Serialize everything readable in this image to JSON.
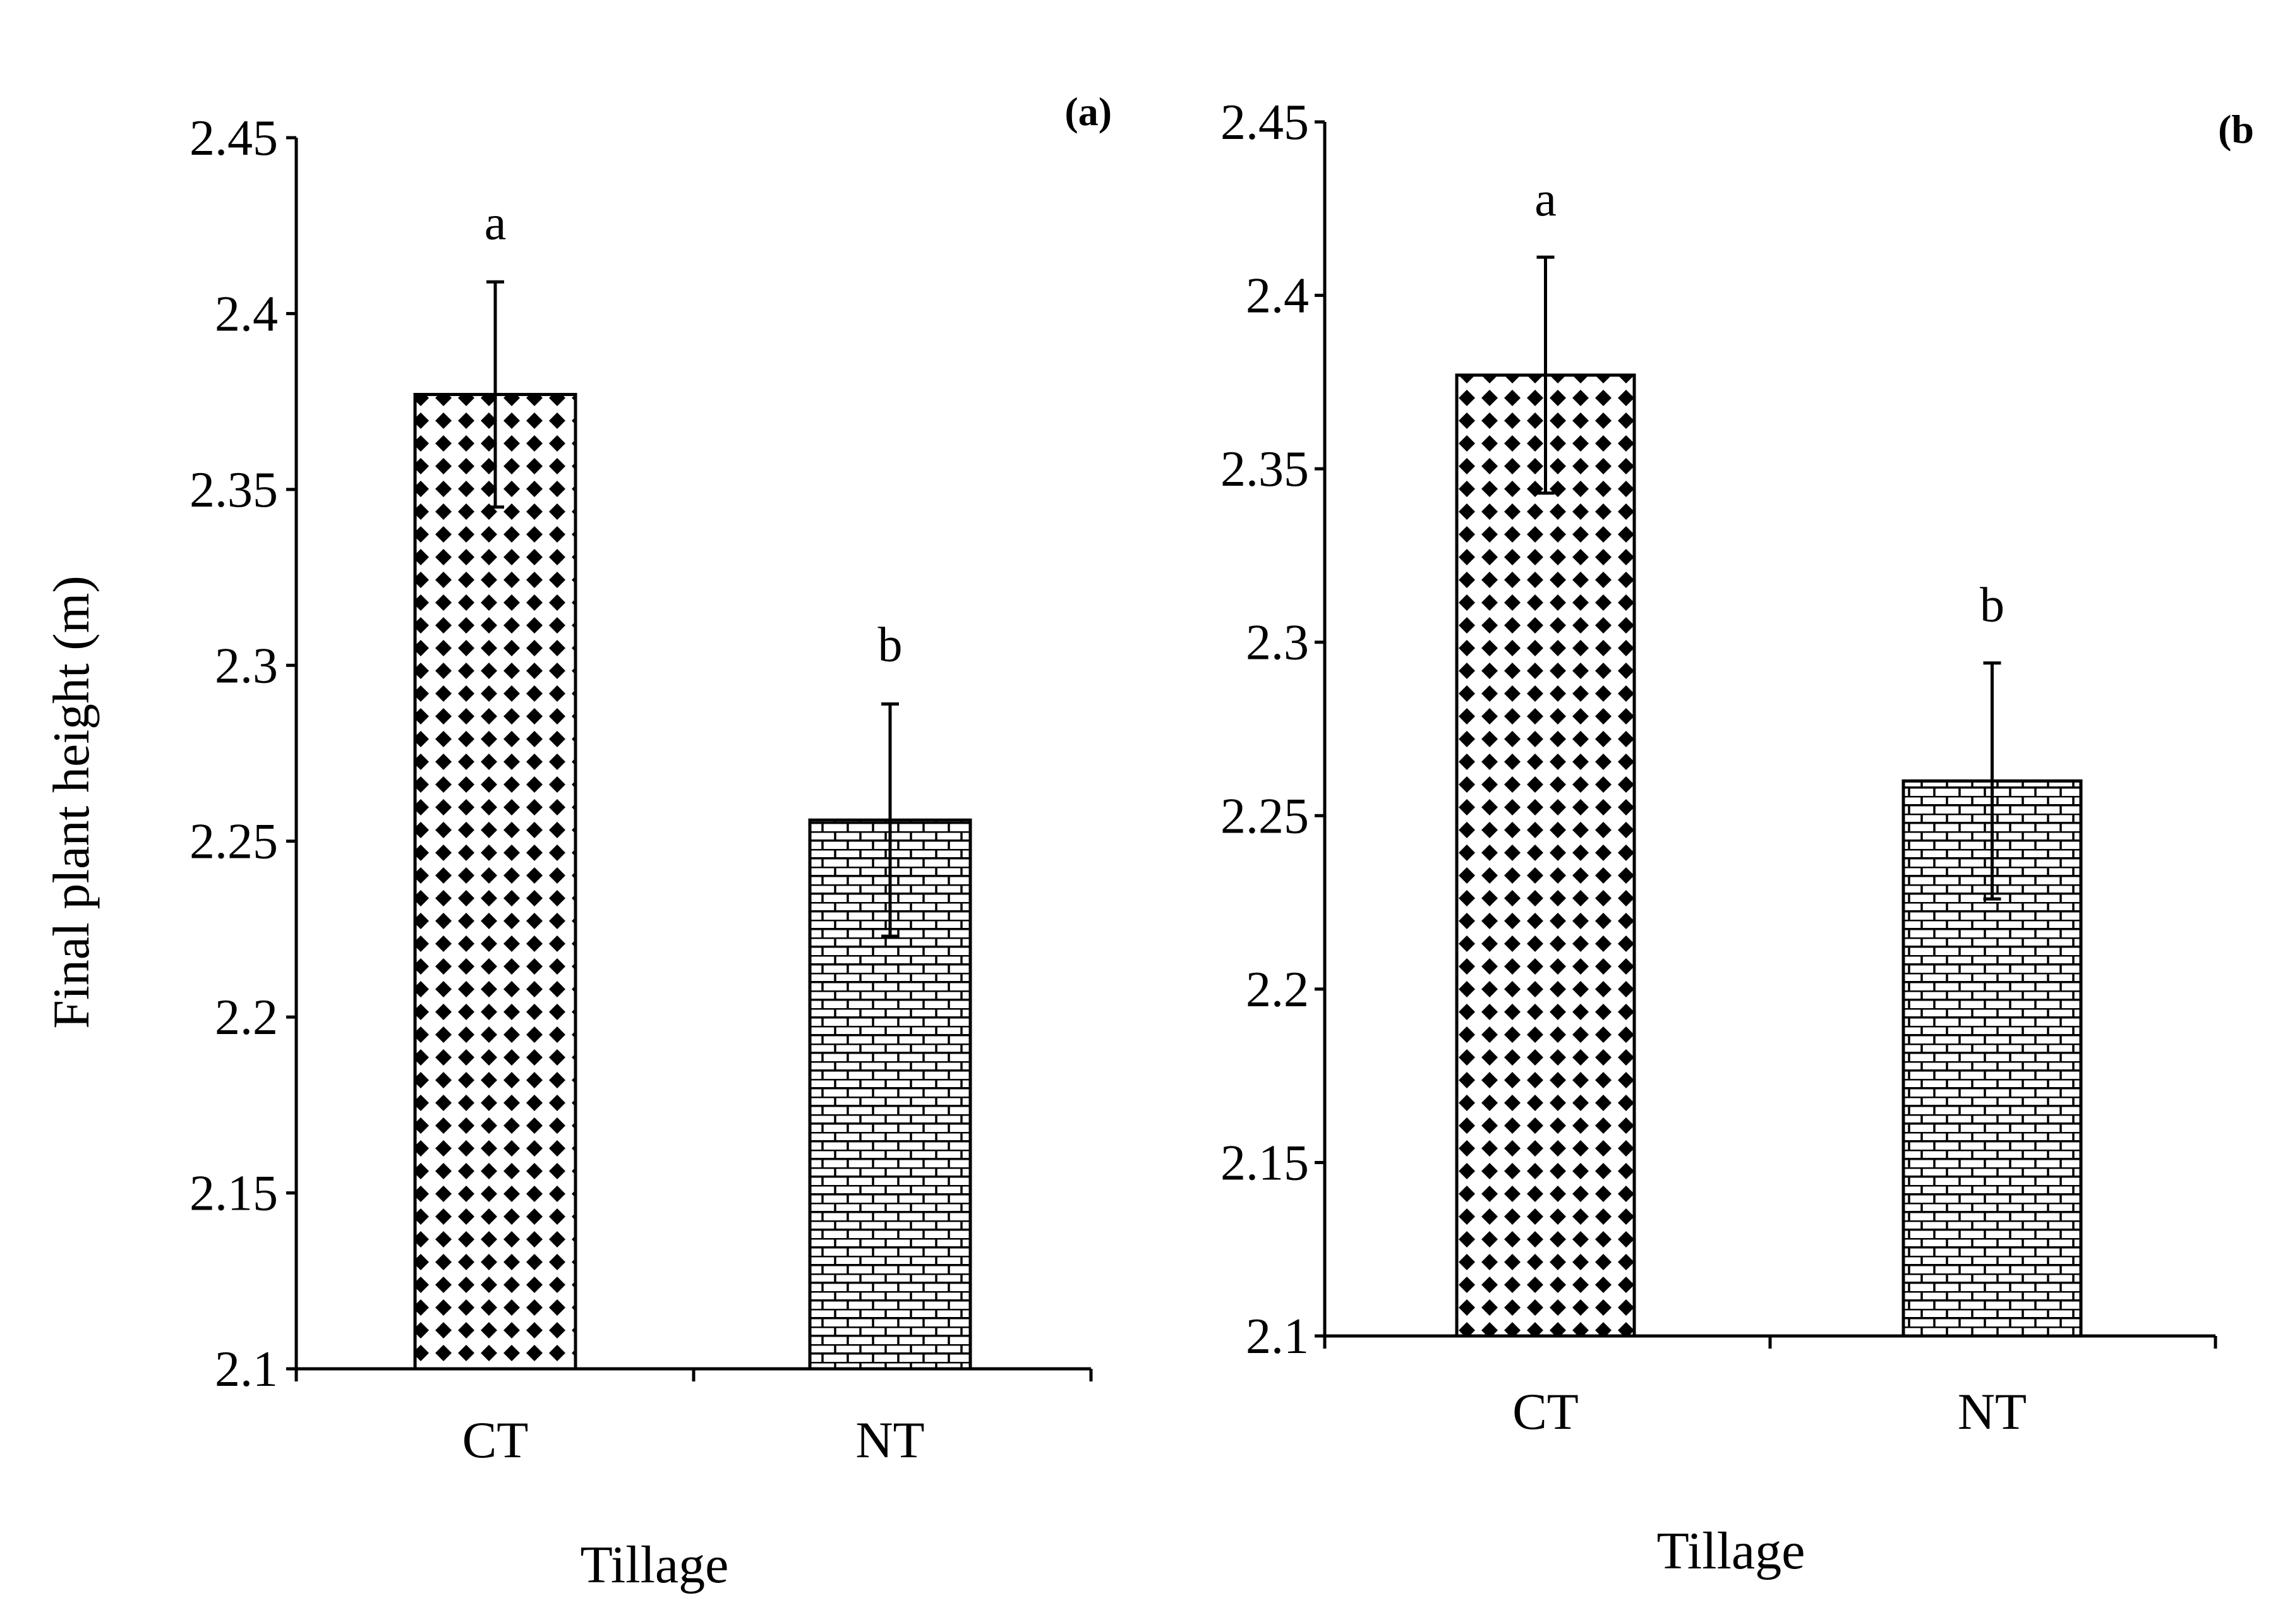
{
  "chart_data": [
    {
      "type": "bar",
      "panel_label": "(a)",
      "categories": [
        "CT",
        "NT"
      ],
      "values": [
        2.377,
        2.256
      ],
      "error": [
        0.032,
        0.033
      ],
      "significance": [
        "a",
        "b"
      ],
      "patterns": [
        "diamond-dots",
        "brick"
      ],
      "xlabel": "Tillage",
      "ylabel": "Final plant height (m)",
      "ylim": [
        2.1,
        2.45
      ],
      "yticks": [
        "2.1",
        "2.15",
        "2.2",
        "2.25",
        "2.3",
        "2.35",
        "2.4",
        "2.45"
      ],
      "grid": false,
      "legend": "none"
    },
    {
      "type": "bar",
      "panel_label": "(b",
      "categories": [
        "CT",
        "NT"
      ],
      "values": [
        2.377,
        2.26
      ],
      "error": [
        0.034,
        0.034
      ],
      "significance": [
        "a",
        "b"
      ],
      "patterns": [
        "diamond-dots",
        "brick"
      ],
      "xlabel": "Tillage",
      "ylabel": "",
      "ylim": [
        2.1,
        2.45
      ],
      "yticks": [
        "2.1",
        "2.15",
        "2.2",
        "2.25",
        "2.3",
        "2.35",
        "2.4",
        "2.45"
      ],
      "grid": false,
      "legend": "none"
    }
  ],
  "colors": {
    "ink": "#000000",
    "background": "#ffffff"
  }
}
